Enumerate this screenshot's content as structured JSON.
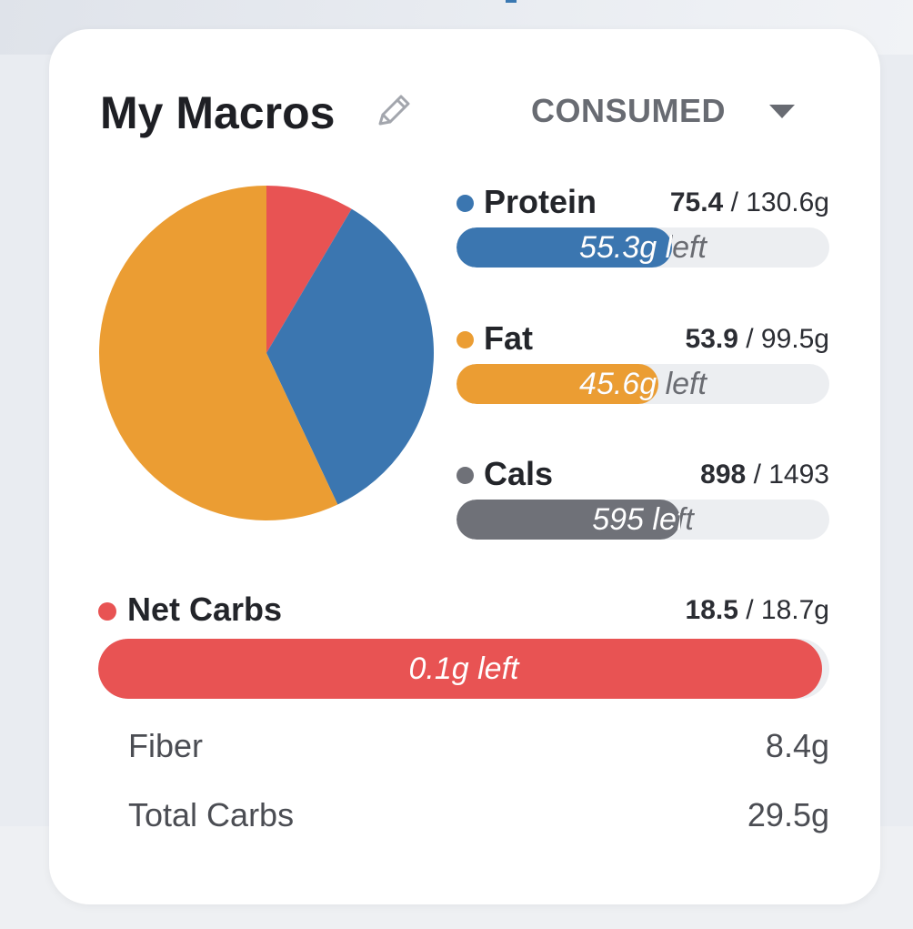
{
  "colors": {
    "protein": "#3b76b0",
    "fat": "#eb9d33",
    "cals": "#6f7178",
    "net_carbs": "#e85353",
    "track": "#eceef1"
  },
  "header": {
    "title": "My Macros",
    "edit_icon": "pencil-icon",
    "dropdown_label": "CONSUMED",
    "dropdown_icon": "caret-down-icon"
  },
  "chart_data": {
    "type": "pie",
    "slices": [
      {
        "label": "Net Carbs",
        "value": 8.5,
        "color": "#e85353"
      },
      {
        "label": "Protein",
        "value": 34.5,
        "color": "#3b76b0"
      },
      {
        "label": "Fat",
        "value": 57.0,
        "color": "#eb9d33"
      }
    ]
  },
  "macros": [
    {
      "key": "protein",
      "name": "Protein",
      "current": "75.4",
      "target": "/ 130.6g",
      "left": "55.3g left",
      "progress": 0.577
    },
    {
      "key": "fat",
      "name": "Fat",
      "current": "53.9",
      "target": "/ 99.5g",
      "left": "45.6g left",
      "progress": 0.542
    },
    {
      "key": "cals",
      "name": "Cals",
      "current": "898",
      "target": "/ 1493",
      "left": "595 left",
      "progress": 0.601
    }
  ],
  "net_carbs": {
    "name": "Net Carbs",
    "current": "18.5",
    "target": "/ 18.7g",
    "left": "0.1g left",
    "progress": 0.99
  },
  "details": [
    {
      "label": "Fiber",
      "value": "8.4g"
    },
    {
      "label": "Total Carbs",
      "value": "29.5g"
    }
  ]
}
